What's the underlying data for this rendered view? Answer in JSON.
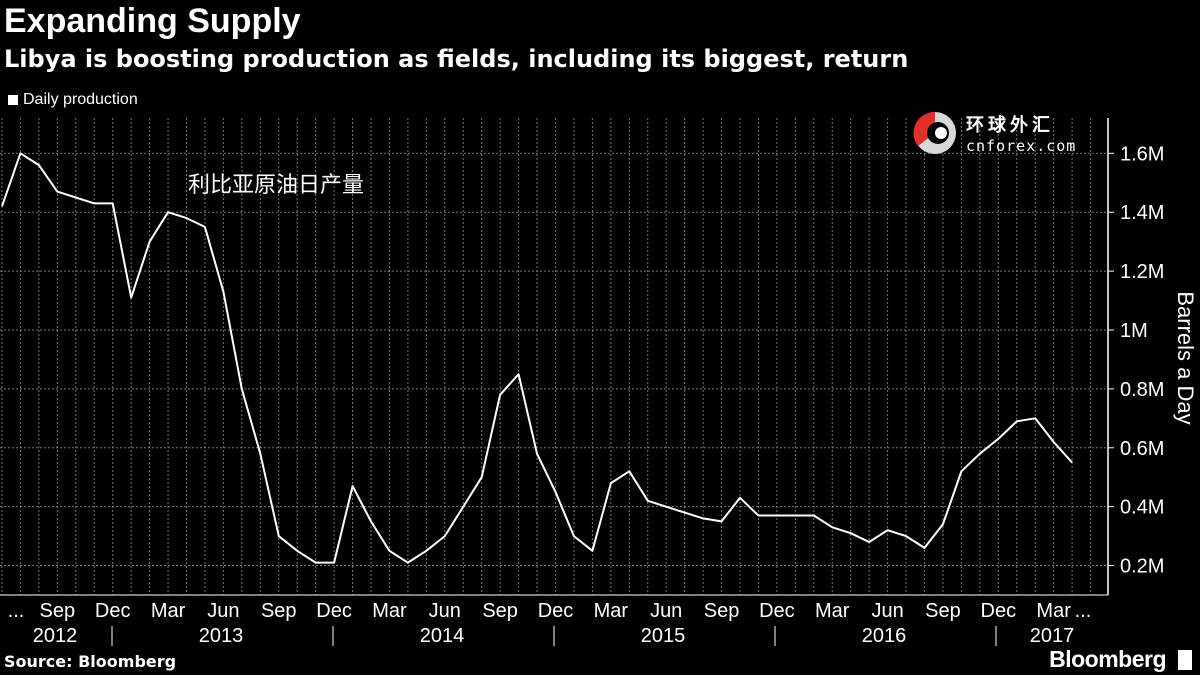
{
  "title": "Expanding Supply",
  "subtitle": "Libya is boosting production as fields, including its biggest, return",
  "legend": {
    "label": "Daily production"
  },
  "annotation": "利比亚原油日产量",
  "watermark": {
    "cn": "环球外汇",
    "en": "cnforex.com"
  },
  "footer": {
    "source": "Source: Bloomberg",
    "brand": "Bloomberg"
  },
  "colors": {
    "background": "#000000",
    "line": "#ffffff",
    "grid": "#888888"
  },
  "chart_data": {
    "type": "line",
    "title": "Expanding Supply",
    "ylabel": "Barrels a Day",
    "ylim": [
      0.1,
      1.72
    ],
    "grid": true,
    "y_ticks": [
      0.2,
      0.4,
      0.6,
      0.8,
      1.0,
      1.2,
      1.4,
      1.6
    ],
    "y_tick_labels": [
      "0.2M",
      "0.4M",
      "0.6M",
      "0.8M",
      "1M",
      "1.2M",
      "1.4M",
      "1.6M"
    ],
    "x_month_labels": [
      "...",
      "Sep",
      "Dec",
      "Mar",
      "Jun",
      "Sep",
      "Dec",
      "Mar",
      "Jun",
      "Sep",
      "Dec",
      "Mar",
      "Jun",
      "Sep",
      "Dec",
      "Mar",
      "Jun",
      "Sep",
      "Dec",
      "Mar",
      "..."
    ],
    "x_year_labels": [
      "2012",
      "2013",
      "2014",
      "2015",
      "2016",
      "2017"
    ],
    "series": [
      {
        "name": "Daily production",
        "x": [
          "2012-06",
          "2012-07",
          "2012-08",
          "2012-09",
          "2012-10",
          "2012-11",
          "2012-12",
          "2013-01",
          "2013-02",
          "2013-03",
          "2013-04",
          "2013-05",
          "2013-06",
          "2013-07",
          "2013-08",
          "2013-09",
          "2013-10",
          "2013-11",
          "2013-12",
          "2014-01",
          "2014-02",
          "2014-03",
          "2014-04",
          "2014-05",
          "2014-06",
          "2014-07",
          "2014-08",
          "2014-09",
          "2014-10",
          "2014-11",
          "2014-12",
          "2015-01",
          "2015-02",
          "2015-03",
          "2015-04",
          "2015-05",
          "2015-06",
          "2015-07",
          "2015-08",
          "2015-09",
          "2015-10",
          "2015-11",
          "2015-12",
          "2016-01",
          "2016-02",
          "2016-03",
          "2016-04",
          "2016-05",
          "2016-06",
          "2016-07",
          "2016-08",
          "2016-09",
          "2016-10",
          "2016-11",
          "2016-12",
          "2017-01",
          "2017-02",
          "2017-03",
          "2017-04"
        ],
        "values": [
          1.42,
          1.6,
          1.56,
          1.47,
          1.45,
          1.43,
          1.43,
          1.11,
          1.3,
          1.4,
          1.38,
          1.35,
          1.13,
          0.8,
          0.58,
          0.3,
          0.25,
          0.21,
          0.21,
          0.47,
          0.35,
          0.25,
          0.21,
          0.25,
          0.3,
          0.4,
          0.5,
          0.78,
          0.85,
          0.58,
          0.45,
          0.3,
          0.25,
          0.48,
          0.52,
          0.42,
          0.4,
          0.38,
          0.36,
          0.35,
          0.43,
          0.37,
          0.37,
          0.37,
          0.37,
          0.33,
          0.31,
          0.28,
          0.32,
          0.3,
          0.26,
          0.34,
          0.52,
          0.58,
          0.63,
          0.69,
          0.7,
          0.62,
          0.55
        ]
      }
    ]
  }
}
